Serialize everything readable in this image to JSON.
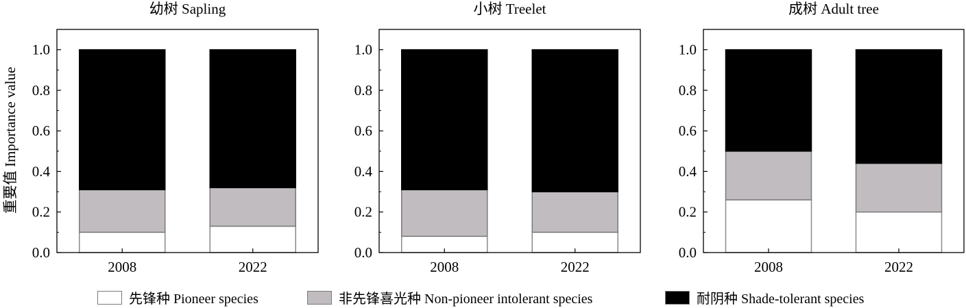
{
  "ylabel": "重要值 Importance value",
  "legend": [
    {
      "label": "先锋种 Pioneer species",
      "color": "#ffffff"
    },
    {
      "label": "非先锋喜光种 Non-pioneer intolerant species",
      "color": "#c0bcc0"
    },
    {
      "label": "耐阴种 Shade-tolerant species",
      "color": "#000000"
    }
  ],
  "chart_data": [
    {
      "type": "bar",
      "stacked": true,
      "title": "幼树 Sapling",
      "categories": [
        "2008",
        "2022"
      ],
      "series": [
        {
          "name": "先锋种 Pioneer species",
          "values": [
            0.1,
            0.13
          ]
        },
        {
          "name": "非先锋喜光种 Non-pioneer intolerant species",
          "values": [
            0.21,
            0.19
          ]
        },
        {
          "name": "耐阴种 Shade-tolerant species",
          "values": [
            0.69,
            0.68
          ]
        }
      ],
      "ylim": [
        0,
        1.1
      ],
      "yticks": [
        "0.0",
        "0.2",
        "0.4",
        "0.6",
        "0.8",
        "1.0"
      ]
    },
    {
      "type": "bar",
      "stacked": true,
      "title": "小树 Treelet",
      "categories": [
        "2008",
        "2022"
      ],
      "series": [
        {
          "name": "先锋种 Pioneer species",
          "values": [
            0.08,
            0.1
          ]
        },
        {
          "name": "非先锋喜光种 Non-pioneer intolerant species",
          "values": [
            0.23,
            0.2
          ]
        },
        {
          "name": "耐阴种 Shade-tolerant species",
          "values": [
            0.69,
            0.7
          ]
        }
      ],
      "ylim": [
        0,
        1.1
      ],
      "yticks": [
        "0.0",
        "0.2",
        "0.4",
        "0.6",
        "0.8",
        "1.0"
      ]
    },
    {
      "type": "bar",
      "stacked": true,
      "title": "成树 Adult tree",
      "categories": [
        "2008",
        "2022"
      ],
      "series": [
        {
          "name": "先锋种 Pioneer species",
          "values": [
            0.26,
            0.2
          ]
        },
        {
          "name": "非先锋喜光种 Non-pioneer intolerant species",
          "values": [
            0.24,
            0.24
          ]
        },
        {
          "name": "耐阴种 Shade-tolerant species",
          "values": [
            0.5,
            0.56
          ]
        }
      ],
      "ylim": [
        0,
        1.1
      ],
      "yticks": [
        "0.0",
        "0.2",
        "0.4",
        "0.6",
        "0.8",
        "1.0"
      ]
    }
  ]
}
